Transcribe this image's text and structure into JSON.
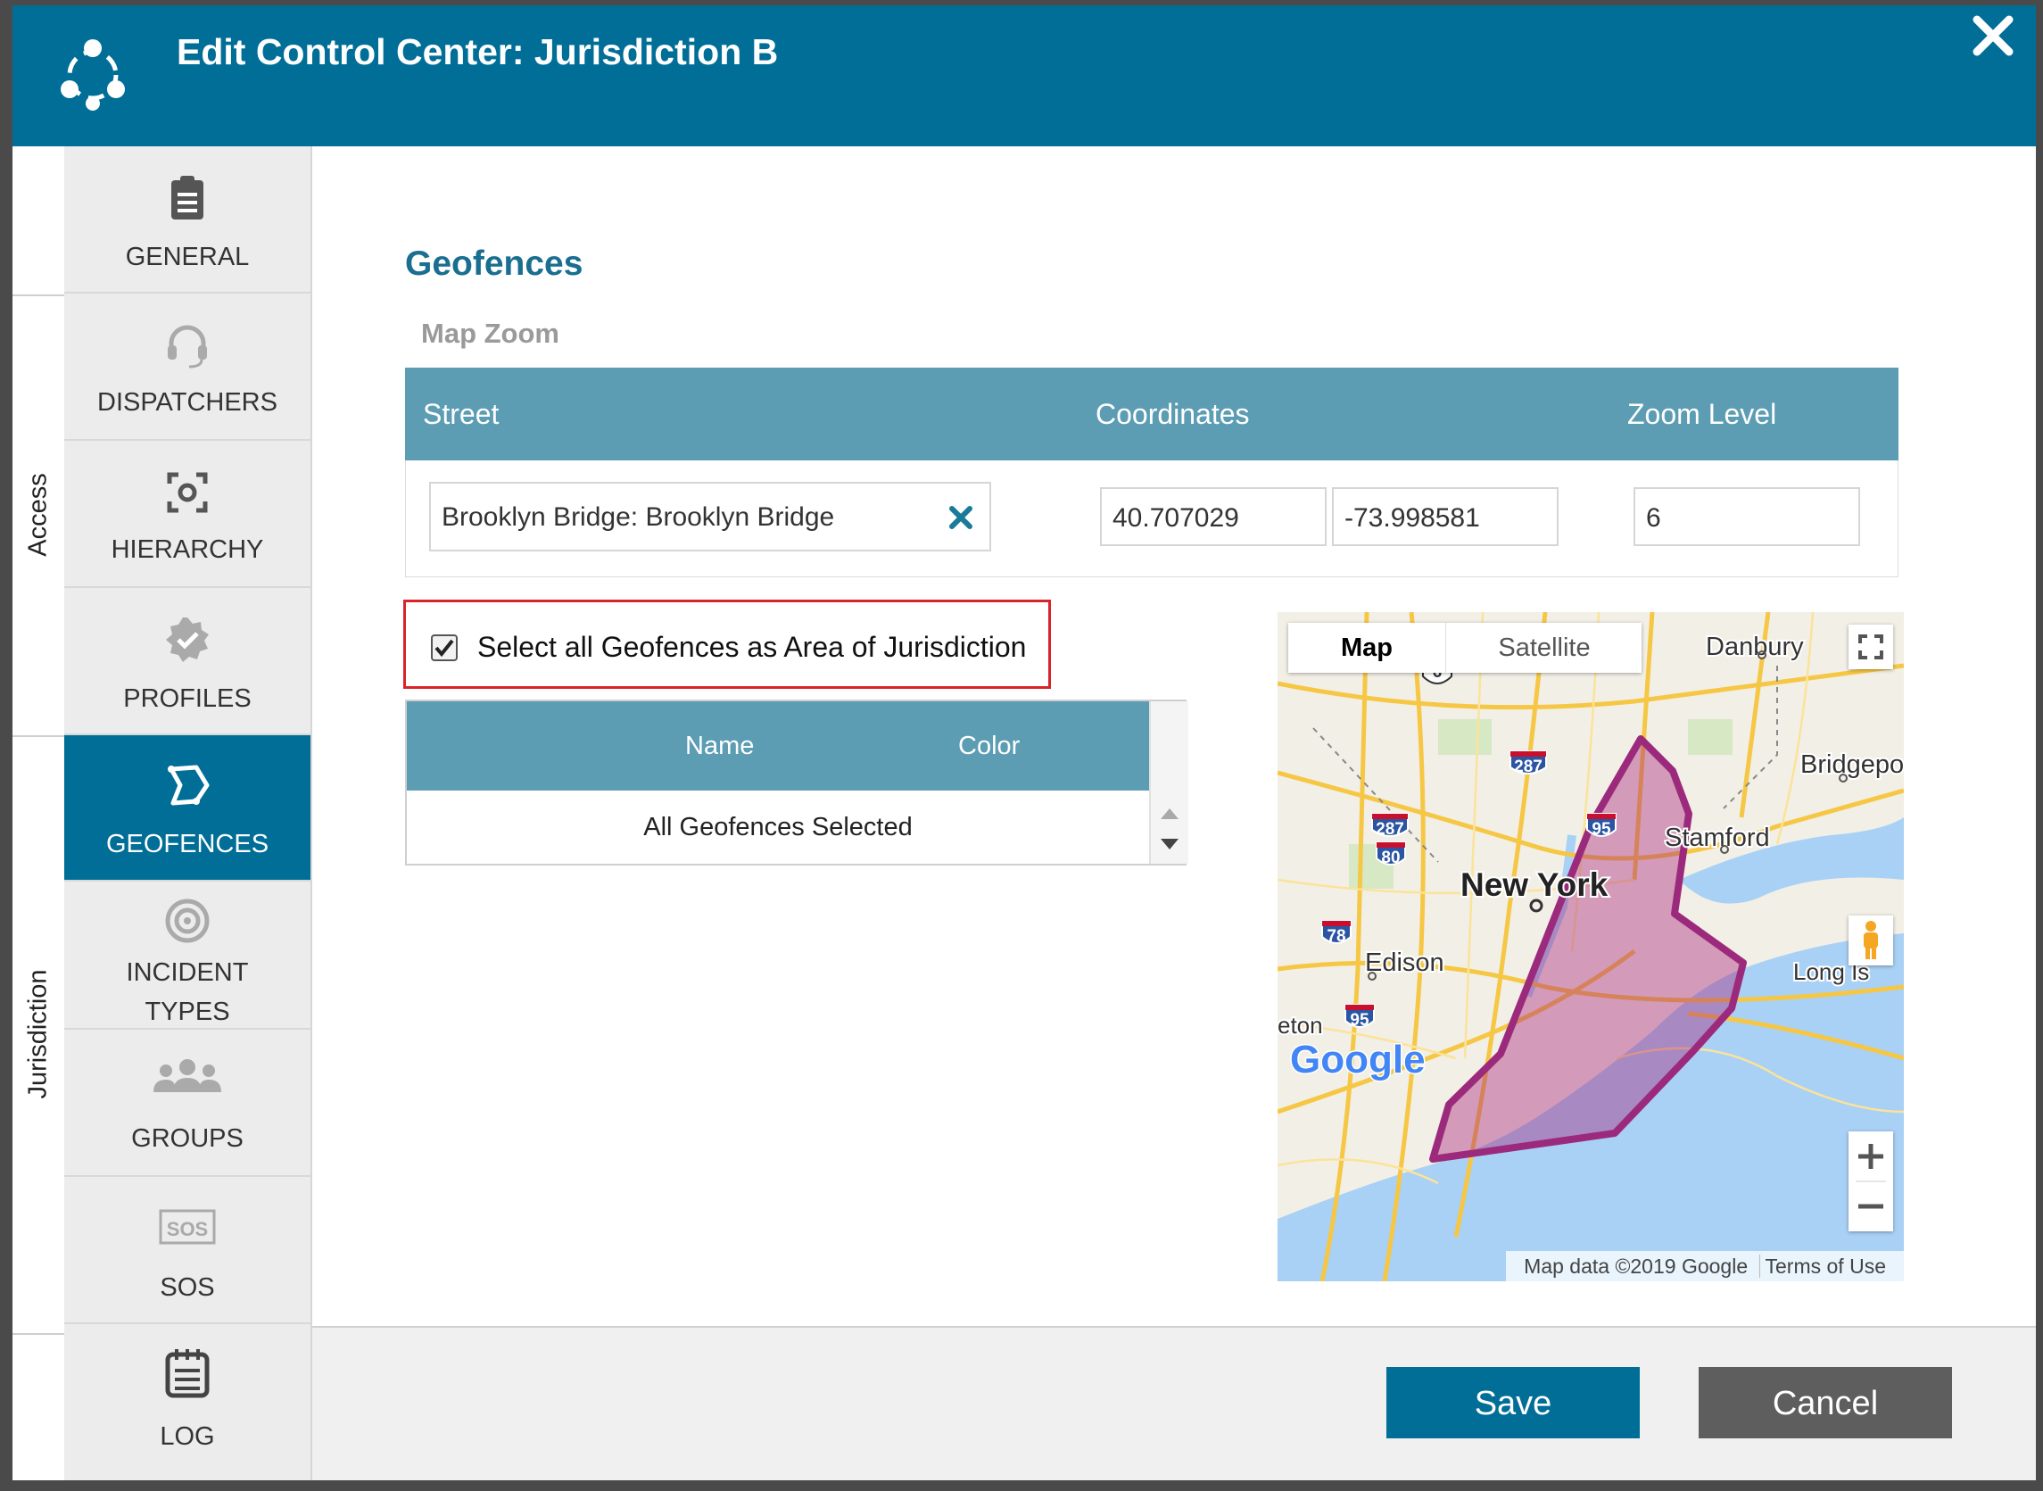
{
  "header": {
    "title": "Edit Control Center: Jurisdiction B",
    "logo_icon": "network-logo-icon",
    "close_icon": "close-icon",
    "color": "#006e97"
  },
  "side_tabs": [
    {
      "label": "Access"
    },
    {
      "label": "Jurisdiction"
    }
  ],
  "nav": {
    "items": [
      {
        "label": "GENERAL",
        "icon": "clipboard-icon"
      },
      {
        "label": "DISPATCHERS",
        "icon": "headset-icon"
      },
      {
        "label": "HIERARCHY",
        "icon": "focus-icon"
      },
      {
        "label": "PROFILES",
        "icon": "badge-check-icon"
      },
      {
        "label": "GEOFENCES",
        "icon": "polygon-icon",
        "active": true
      },
      {
        "label": "INCIDENT",
        "label2": "TYPES",
        "icon": "target-icon"
      },
      {
        "label": "GROUPS",
        "icon": "people-icon"
      },
      {
        "label": "SOS",
        "icon": "sos-icon"
      },
      {
        "label": "LOG",
        "icon": "notepad-icon"
      }
    ],
    "active_color": "#006e97"
  },
  "main": {
    "section_title": "Geofences",
    "map_zoom_label": "Map Zoom",
    "table": {
      "columns": [
        "Street",
        "Coordinates",
        "Zoom Level"
      ],
      "street_value": "Brooklyn Bridge: Brooklyn Bridge",
      "latitude": "40.707029",
      "longitude": "-73.998581",
      "zoom_level": "6"
    },
    "select_all": {
      "label": "Select all Geofences as Area of Jurisdiction",
      "checked": true,
      "highlight_color": "#d8232a"
    },
    "geofence_table": {
      "columns": [
        "Name",
        "Color"
      ],
      "rows": [
        "All Geofences Selected"
      ]
    }
  },
  "map": {
    "tabs": [
      "Map",
      "Satellite"
    ],
    "selected_tab": "Map",
    "city_labels": [
      "Danbury",
      "Bridgepo",
      "Stamford",
      "New York",
      "Long Is",
      "Edison",
      "eton"
    ],
    "route_shields": [
      "6",
      "287",
      "287",
      "80",
      "95",
      "78",
      "95"
    ],
    "brand": "Google",
    "attribution": "Map data ©2019 Google",
    "terms": "Terms of Use",
    "geofence_color": "#9c2a7c"
  },
  "footer": {
    "save_label": "Save",
    "cancel_label": "Cancel"
  }
}
